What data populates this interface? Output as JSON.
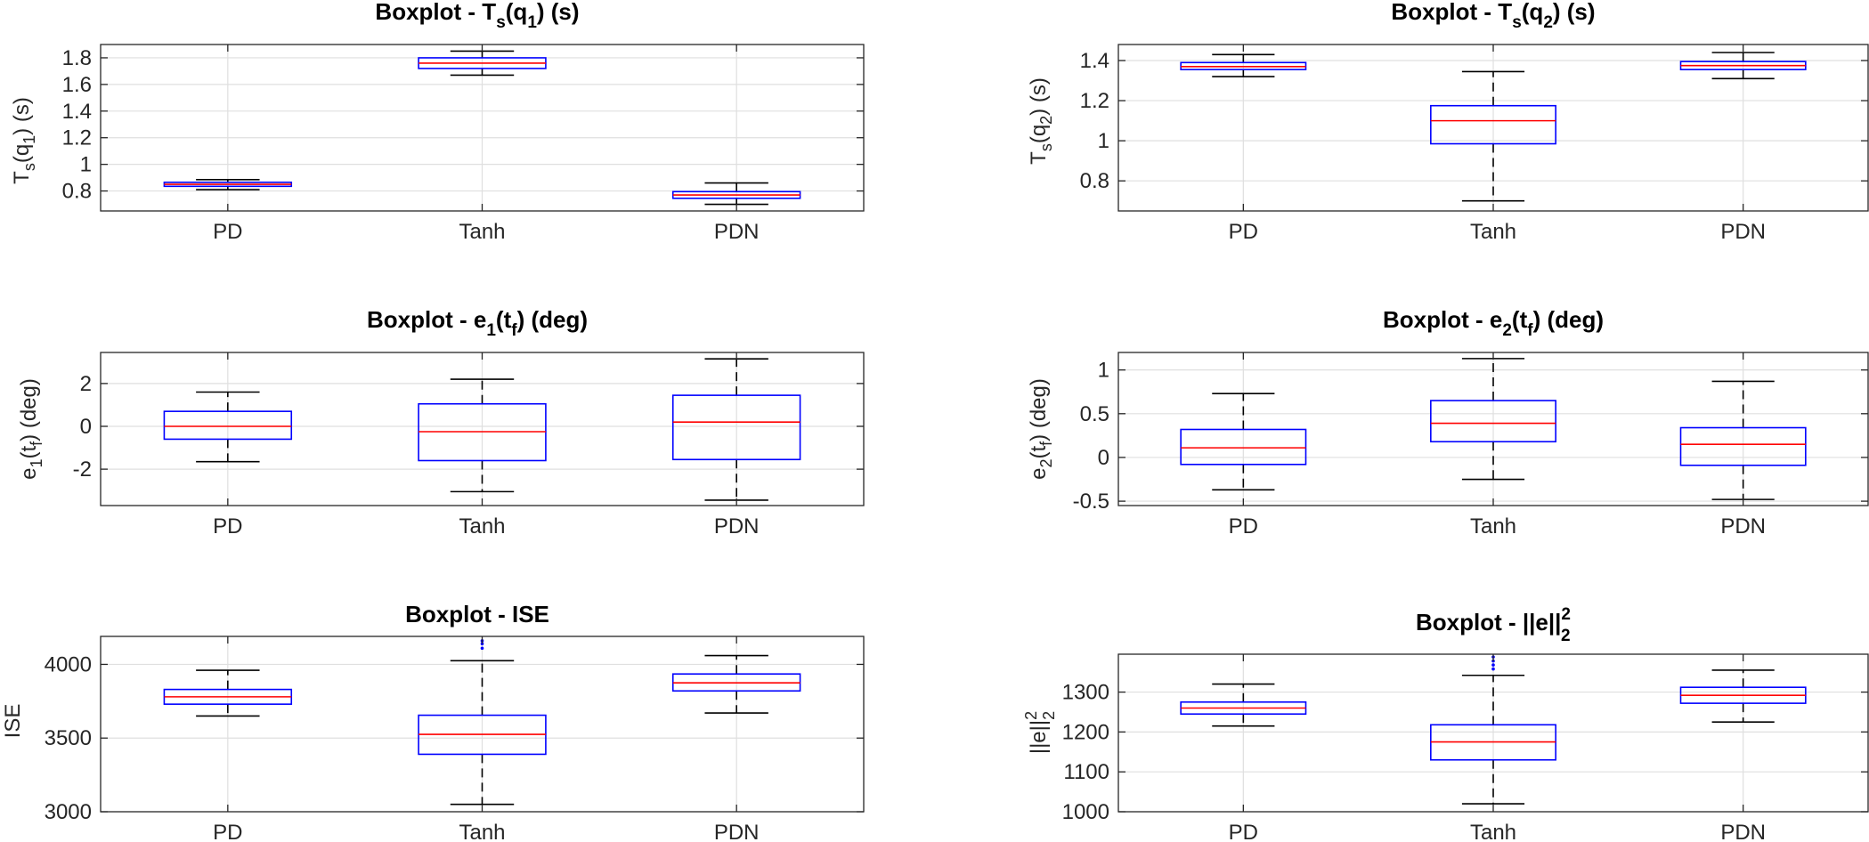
{
  "chart_data": [
    {
      "type": "box",
      "title": "Boxplot - T_s(q_1) (s)",
      "ylabel": "T_s(q_1) (s)",
      "categories": [
        "PD",
        "Tanh",
        "PDN"
      ],
      "ylim": [
        0.65,
        1.9
      ],
      "yticks": [
        0.8,
        1,
        1.2,
        1.4,
        1.6,
        1.8
      ],
      "ytick_labels": [
        "0.8",
        "1",
        "1.2",
        "1.4",
        "1.6",
        "1.8"
      ],
      "boxes": [
        {
          "whisker_low": 0.81,
          "q1": 0.835,
          "median": 0.85,
          "q3": 0.865,
          "whisker_high": 0.885,
          "outliers": []
        },
        {
          "whisker_low": 1.67,
          "q1": 1.72,
          "median": 1.76,
          "q3": 1.8,
          "whisker_high": 1.85,
          "outliers": []
        },
        {
          "whisker_low": 0.7,
          "q1": 0.745,
          "median": 0.77,
          "q3": 0.795,
          "whisker_high": 0.86,
          "outliers": []
        }
      ]
    },
    {
      "type": "box",
      "title": "Boxplot - T_s(q_2) (s)",
      "ylabel": "T_s(q_2) (s)",
      "categories": [
        "PD",
        "Tanh",
        "PDN"
      ],
      "ylim": [
        0.65,
        1.48
      ],
      "yticks": [
        0.8,
        1,
        1.2,
        1.4
      ],
      "ytick_labels": [
        "0.8",
        "1",
        "1.2",
        "1.4"
      ],
      "boxes": [
        {
          "whisker_low": 1.32,
          "q1": 1.355,
          "median": 1.37,
          "q3": 1.39,
          "whisker_high": 1.43,
          "outliers": []
        },
        {
          "whisker_low": 0.7,
          "q1": 0.985,
          "median": 1.1,
          "q3": 1.175,
          "whisker_high": 1.345,
          "outliers": []
        },
        {
          "whisker_low": 1.31,
          "q1": 1.355,
          "median": 1.375,
          "q3": 1.395,
          "whisker_high": 1.44,
          "outliers": []
        }
      ]
    },
    {
      "type": "box",
      "title": "Boxplot - e_1(t_f) (deg)",
      "ylabel": "e_1(t_f) (deg)",
      "categories": [
        "PD",
        "Tanh",
        "PDN"
      ],
      "ylim": [
        -3.7,
        3.45
      ],
      "yticks": [
        -2,
        0,
        2
      ],
      "ytick_labels": [
        "-2",
        "0",
        "2"
      ],
      "boxes": [
        {
          "whisker_low": -1.65,
          "q1": -0.6,
          "median": 0.0,
          "q3": 0.7,
          "whisker_high": 1.6,
          "outliers": []
        },
        {
          "whisker_low": -3.05,
          "q1": -1.6,
          "median": -0.25,
          "q3": 1.05,
          "whisker_high": 2.2,
          "outliers": []
        },
        {
          "whisker_low": -3.45,
          "q1": -1.55,
          "median": 0.2,
          "q3": 1.45,
          "whisker_high": 3.15,
          "outliers": []
        }
      ]
    },
    {
      "type": "box",
      "title": "Boxplot - e_2(t_f) (deg)",
      "ylabel": "e_2(t_f) (deg)",
      "categories": [
        "PD",
        "Tanh",
        "PDN"
      ],
      "ylim": [
        -0.55,
        1.2
      ],
      "yticks": [
        -0.5,
        0,
        0.5,
        1
      ],
      "ytick_labels": [
        "-0.5",
        "0",
        "0.5",
        "1"
      ],
      "boxes": [
        {
          "whisker_low": -0.37,
          "q1": -0.08,
          "median": 0.11,
          "q3": 0.32,
          "whisker_high": 0.73,
          "outliers": []
        },
        {
          "whisker_low": -0.25,
          "q1": 0.18,
          "median": 0.39,
          "q3": 0.65,
          "whisker_high": 1.13,
          "outliers": []
        },
        {
          "whisker_low": -0.48,
          "q1": -0.09,
          "median": 0.15,
          "q3": 0.34,
          "whisker_high": 0.87,
          "outliers": []
        }
      ]
    },
    {
      "type": "box",
      "title": "Boxplot - ISE",
      "ylabel": "ISE",
      "categories": [
        "PD",
        "Tanh",
        "PDN"
      ],
      "ylim": [
        3000,
        4190
      ],
      "yticks": [
        3000,
        3500,
        4000
      ],
      "ytick_labels": [
        "3000",
        "3500",
        "4000"
      ],
      "boxes": [
        {
          "whisker_low": 3650,
          "q1": 3730,
          "median": 3780,
          "q3": 3830,
          "whisker_high": 3960,
          "outliers": []
        },
        {
          "whisker_low": 3050,
          "q1": 3390,
          "median": 3525,
          "q3": 3655,
          "whisker_high": 4025,
          "outliers": [
            4110,
            4140,
            4160
          ]
        },
        {
          "whisker_low": 3670,
          "q1": 3820,
          "median": 3875,
          "q3": 3935,
          "whisker_high": 4060,
          "outliers": []
        }
      ]
    },
    {
      "type": "box",
      "title": "Boxplot - ||e||_2^2",
      "ylabel": "||e||_2^2",
      "categories": [
        "PD",
        "Tanh",
        "PDN"
      ],
      "ylim": [
        1000,
        1395
      ],
      "yticks": [
        1000,
        1100,
        1200,
        1300
      ],
      "ytick_labels": [
        "1000",
        "1100",
        "1200",
        "1300"
      ],
      "boxes": [
        {
          "whisker_low": 1215,
          "q1": 1245,
          "median": 1260,
          "q3": 1275,
          "whisker_high": 1320,
          "outliers": []
        },
        {
          "whisker_low": 1020,
          "q1": 1130,
          "median": 1175,
          "q3": 1218,
          "whisker_high": 1342,
          "outliers": [
            1358,
            1368,
            1378,
            1388
          ]
        },
        {
          "whisker_low": 1225,
          "q1": 1272,
          "median": 1292,
          "q3": 1312,
          "whisker_high": 1355,
          "outliers": []
        }
      ]
    }
  ],
  "colors": {
    "box": "#0000ff",
    "median": "#ff0000",
    "whisker": "#000000",
    "outlier": "#0000ff",
    "grid": "#dfdfdf",
    "axes": "#262626"
  }
}
